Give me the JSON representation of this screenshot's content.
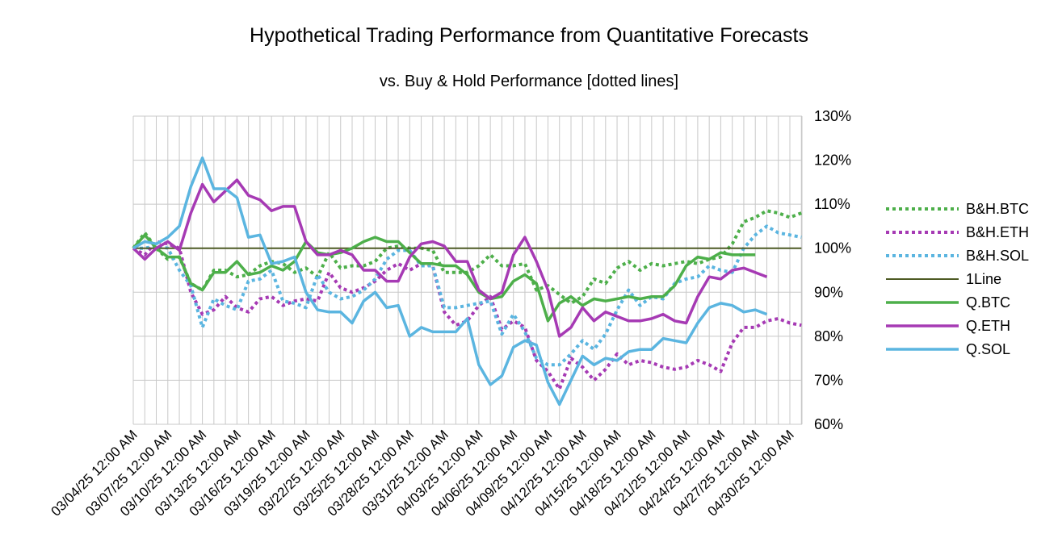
{
  "chart_data": {
    "type": "line",
    "title": "Hypothetical Trading Performance from Quantitative Forecasts",
    "subtitle": "vs. Buy & Hold Performance [dotted lines]",
    "xlabel": "",
    "ylabel": "",
    "x_start": "03/04/25",
    "x_end": "04/30/25",
    "tick_labels": [
      "03/04/25 12:00 AM",
      "03/07/25 12:00 AM",
      "03/10/25 12:00 AM",
      "03/13/25 12:00 AM",
      "03/16/25 12:00 AM",
      "03/19/25 12:00 AM",
      "03/22/25 12:00 AM",
      "03/25/25 12:00 AM",
      "03/28/25 12:00 AM",
      "03/31/25 12:00 AM",
      "04/03/25 12:00 AM",
      "04/06/25 12:00 AM",
      "04/09/25 12:00 AM",
      "04/12/25 12:00 AM",
      "04/15/25 12:00 AM",
      "04/18/25 12:00 AM",
      "04/21/25 12:00 AM",
      "04/24/25 12:00 AM",
      "04/27/25 12:00 AM",
      "04/30/25 12:00 AM"
    ],
    "y_ticks": [
      "60%",
      "70%",
      "80%",
      "90%",
      "100%",
      "110%",
      "120%",
      "130%"
    ],
    "ylim": [
      60,
      130
    ],
    "y_axis_position": "right",
    "grid": true,
    "legend_position": "right",
    "series": [
      {
        "name": "B&H.BTC",
        "color": "#4daf4a",
        "style": "dotted",
        "values": [
          100,
          103.5,
          100,
          97.5,
          98,
          92,
          90.5,
          95,
          95,
          93.5,
          94,
          96,
          97,
          96.5,
          94.5,
          95.5,
          93.5,
          99,
          95.5,
          96,
          96,
          97,
          100,
          100.5,
          100,
          100,
          99.5,
          94.5,
          94.5,
          94.5,
          96,
          98.5,
          96,
          96,
          96.5,
          90.5,
          91.5,
          89.5,
          87.5,
          89,
          93,
          92,
          95.5,
          97,
          95,
          96.5,
          96,
          96.5,
          97,
          96.5,
          97.5,
          98,
          101,
          106,
          107,
          108.5,
          108,
          107,
          108
        ]
      },
      {
        "name": "B&H.ETH",
        "color": "#a63ab4",
        "style": "dotted",
        "values": [
          100,
          98.5,
          101.5,
          101,
          100,
          90,
          85,
          86,
          89,
          86.5,
          85.5,
          88.5,
          89,
          87,
          88,
          88.5,
          88,
          94.5,
          91,
          90,
          91,
          92.5,
          95,
          96.5,
          95,
          96.5,
          96,
          85.5,
          82.5,
          83.5,
          87,
          89,
          81.5,
          83.5,
          82,
          74.5,
          72,
          68,
          75,
          73,
          70,
          72.5,
          76,
          73.5,
          74.5,
          74,
          73,
          72.5,
          73,
          74.5,
          73.5,
          72,
          78.5,
          82,
          82,
          83.5,
          84,
          83,
          82.5
        ]
      },
      {
        "name": "B&H.SOL",
        "color": "#5bb5e0",
        "style": "dotted",
        "values": [
          100,
          100,
          100.5,
          100,
          95,
          91.5,
          82,
          88.5,
          87,
          86,
          92.5,
          93,
          95,
          88,
          87.5,
          86.5,
          94,
          90,
          88.5,
          89,
          90.5,
          93,
          97.5,
          99.5,
          99.5,
          96,
          96,
          86.5,
          86.5,
          87,
          87.5,
          88,
          80.5,
          85,
          81,
          75,
          73.5,
          73.5,
          76,
          79,
          77,
          80.5,
          86,
          90.5,
          87,
          89,
          88.5,
          92,
          93,
          93.5,
          96,
          95,
          94.5,
          100,
          103,
          105,
          103.5,
          103,
          102.5
        ]
      },
      {
        "name": "1Line",
        "color": "#4d5a24",
        "style": "solid",
        "values": [
          100,
          100,
          100,
          100,
          100,
          100,
          100,
          100,
          100,
          100,
          100,
          100,
          100,
          100,
          100,
          100,
          100,
          100,
          100,
          100,
          100,
          100,
          100,
          100,
          100,
          100,
          100,
          100,
          100,
          100,
          100,
          100,
          100,
          100,
          100,
          100,
          100,
          100,
          100,
          100,
          100,
          100,
          100,
          100,
          100,
          100,
          100,
          100,
          100,
          100,
          100,
          100,
          100,
          100,
          100,
          100,
          100,
          100,
          100
        ]
      },
      {
        "name": "Q.BTC",
        "color": "#4daf4a",
        "style": "solid",
        "values": [
          100,
          103,
          100,
          98,
          98,
          92,
          90.5,
          94.5,
          94.5,
          97,
          94,
          94.5,
          96,
          95,
          97,
          101.5,
          99,
          98.5,
          99,
          100,
          101.5,
          102.5,
          101.5,
          101.5,
          99,
          96.5,
          96.5,
          96,
          96,
          94,
          90,
          88.5,
          89,
          92.5,
          94,
          92,
          83.5,
          87.5,
          89,
          87,
          88.5,
          88,
          88.5,
          89,
          88.5,
          89,
          89,
          91.5,
          96,
          98,
          97.5,
          99,
          98.5,
          98.5,
          98.5
        ]
      },
      {
        "name": "Q.ETH",
        "color": "#a63ab4",
        "style": "solid",
        "values": [
          100,
          97.5,
          100,
          101.5,
          99.5,
          108,
          114.5,
          110.5,
          113,
          115.5,
          112,
          111,
          108.5,
          109.5,
          109.5,
          101.5,
          98.5,
          98.5,
          99.5,
          98.5,
          95,
          95,
          92.5,
          92.5,
          98,
          101,
          101.5,
          100.5,
          97,
          97,
          90.5,
          88.5,
          90,
          98.5,
          102.5,
          97,
          90.5,
          80,
          82,
          86.5,
          83.5,
          85.5,
          84.5,
          83.5,
          83.5,
          84,
          85,
          83.5,
          83,
          89,
          93.5,
          93,
          95,
          95.5,
          94.5,
          93.5
        ]
      },
      {
        "name": "Q.SOL",
        "color": "#5bb5e0",
        "style": "solid",
        "values": [
          100,
          101.5,
          101,
          102.5,
          105,
          114,
          120.5,
          113.5,
          113.5,
          111.5,
          102.5,
          103,
          96.5,
          97,
          98,
          90,
          86,
          85.5,
          85.5,
          83,
          88,
          90,
          86.5,
          87,
          80,
          82,
          81,
          81,
          81,
          84,
          73.5,
          69,
          71,
          77.5,
          79,
          78,
          69.5,
          64.5,
          70,
          75.5,
          73.5,
          75,
          74.5,
          76.5,
          77,
          77,
          79.5,
          79,
          78.5,
          83,
          86.5,
          87.5,
          87,
          85.5,
          86,
          85
        ]
      }
    ]
  }
}
